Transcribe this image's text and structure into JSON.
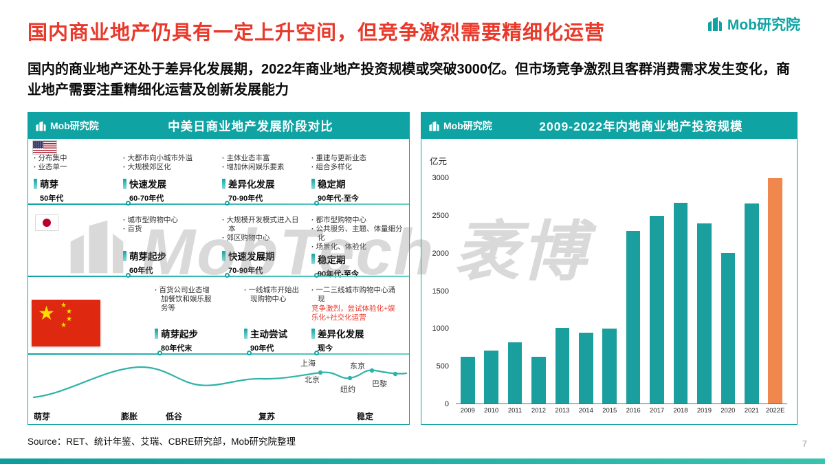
{
  "colors": {
    "teal": "#0FA3A3",
    "title_red": "#E8392B",
    "bar_teal": "#1B9E9E",
    "bar_orange": "#F0884E"
  },
  "brand": {
    "name_top": "Mob研究院",
    "watermark": "MobTech 袤博"
  },
  "header": {
    "title": "国内商业地产仍具有一定上升空间，但竞争激烈需要精细化运营",
    "subtitle": "国内的商业地产还处于差异化发展期，2022年商业地产投资规模或突破3000亿。但市场竞争激烈且客群消费需求发生变化，商业地产需要注重精细化运营及创新发展能力"
  },
  "left_panel": {
    "logo_text": "Mob研究院",
    "title": "中美日商业地产发展阶段对比",
    "rows": [
      {
        "country": "usa",
        "stages": [
          {
            "bullets": [
              "分布集中",
              "业态单一"
            ],
            "label": "萌芽",
            "period": "50年代"
          },
          {
            "bullets": [
              "大都市向小城市外溢",
              "大规模郊区化"
            ],
            "label": "快速发展",
            "period": "60-70年代"
          },
          {
            "bullets": [
              "主体业态丰富",
              "增加休闲娱乐要素"
            ],
            "label": "差异化发展",
            "period": "70-90年代"
          },
          {
            "bullets": [
              "重建与更新业态",
              "组合多样化"
            ],
            "label": "稳定期",
            "period": "90年代-至今"
          }
        ]
      },
      {
        "country": "japan",
        "stages": [
          {
            "bullets": [
              "城市型购物中心",
              "百货"
            ],
            "label": "萌芽起步",
            "period": "60年代"
          },
          {
            "bullets": [
              "大规模开发模式进入日本",
              "郊区购物中心"
            ],
            "label": "快速发展期",
            "period": "70-90年代"
          },
          {
            "bullets": [
              "都市型购物中心",
              "公共服务、主题、体量细分化",
              "场景化、体验化"
            ],
            "label": "稳定期",
            "period": "90年代-至今"
          }
        ]
      },
      {
        "country": "china",
        "stages": [
          {
            "bullets": [
              "百货公司业态增加餐饮和娱乐服务等"
            ],
            "label": "萌芽起步",
            "period": "80年代末"
          },
          {
            "bullets": [
              "一线城市开始出现购物中心"
            ],
            "label": "主动尝试",
            "period": "90年代"
          },
          {
            "bullets": [
              "一二三线城市购物中心涌现"
            ],
            "note_red": "竞争激烈，尝试体验化+娱乐化+社交化运营",
            "label": "差异化发展",
            "period": "现今"
          }
        ]
      }
    ],
    "curve": {
      "phases": [
        "萌芽",
        "膨胀",
        "低谷",
        "复苏",
        "稳定"
      ],
      "cities": [
        "上海",
        "北京",
        "纽约",
        "东京",
        "巴黎"
      ]
    }
  },
  "right_panel": {
    "logo_text": "Mob研究院",
    "title": "2009-2022年内地商业地产投资规模"
  },
  "chart_data": {
    "type": "bar",
    "title": "2009-2022年内地商业地产投资规模",
    "xlabel": "",
    "ylabel": "亿元",
    "categories": [
      "2009",
      "2010",
      "2011",
      "2012",
      "2013",
      "2014",
      "2015",
      "2016",
      "2017",
      "2018",
      "2019",
      "2020",
      "2021",
      "2022E"
    ],
    "values": [
      620,
      700,
      810,
      620,
      1010,
      940,
      1000,
      2300,
      2500,
      2670,
      2400,
      2000,
      2660,
      3000
    ],
    "ylim": [
      0,
      3000
    ],
    "yticks": [
      0,
      500,
      1000,
      1500,
      2000,
      2500,
      3000
    ],
    "grid": false,
    "legend": false,
    "bar_color": "#1B9E9E",
    "highlight_index": 13,
    "highlight_color": "#F0884E"
  },
  "footer": {
    "source": "Source：RET、统计年鉴、艾瑞、CBRE研究部，Mob研究院整理",
    "page_number": "7"
  }
}
